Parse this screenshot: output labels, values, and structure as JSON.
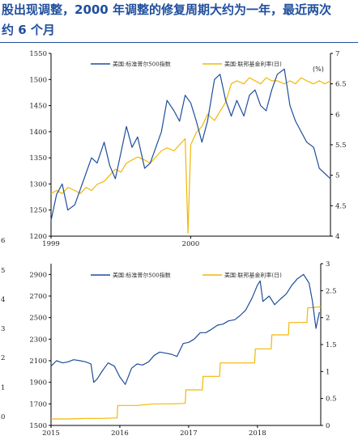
{
  "title": {
    "line1": "股出现调整，2000 年调整的修复周期大约为一年，最近两次",
    "line2": "约 6 个月"
  },
  "left_edge_labels": [
    "6",
    "5",
    "4",
    "3",
    "2",
    "1",
    "0"
  ],
  "colors": {
    "sp500": "#1f4e9c",
    "fed_rate": "#f2b705",
    "axis": "#000000",
    "title": "#1f4e9c"
  },
  "chart_data": [
    {
      "type": "line",
      "title": "",
      "xlabel": "",
      "ylabel": "",
      "x_ticks": [
        {
          "label": "1999",
          "value": 1999.0
        },
        {
          "label": "2000",
          "value": 2000.0
        }
      ],
      "xlim": [
        1999.0,
        2001.0
      ],
      "ylim": [
        1200,
        1550
      ],
      "y_ticks": [
        1200,
        1250,
        1300,
        1350,
        1400,
        1450,
        1500,
        1550
      ],
      "y2lim": [
        4,
        7
      ],
      "y2_ticks": [
        4,
        4.5,
        5,
        5.5,
        6,
        6.5,
        7
      ],
      "y2_unit": "(%)",
      "legend_position": "top",
      "series": [
        {
          "name": "美国:标准普尔500指数",
          "axis": "left",
          "x": [
            1999.0,
            1999.04,
            1999.08,
            1999.12,
            1999.17,
            1999.21,
            1999.25,
            1999.29,
            1999.33,
            1999.38,
            1999.42,
            1999.46,
            1999.5,
            1999.54,
            1999.58,
            1999.62,
            1999.67,
            1999.71,
            1999.75,
            1999.79,
            1999.83,
            1999.88,
            1999.92,
            1999.96,
            2000.0,
            2000.04,
            2000.08,
            2000.12,
            2000.17,
            2000.21,
            2000.25,
            2000.29,
            2000.33,
            2000.38,
            2000.42,
            2000.46,
            2000.5,
            2000.54,
            2000.58,
            2000.62,
            2000.67,
            2000.71,
            2000.75,
            2000.79,
            2000.83,
            2000.88,
            2000.92,
            2000.96,
            2001.0
          ],
          "values": [
            1230,
            1280,
            1300,
            1250,
            1260,
            1290,
            1320,
            1350,
            1340,
            1380,
            1335,
            1310,
            1360,
            1410,
            1370,
            1390,
            1330,
            1340,
            1370,
            1400,
            1460,
            1440,
            1420,
            1470,
            1455,
            1420,
            1380,
            1420,
            1500,
            1510,
            1460,
            1430,
            1460,
            1430,
            1470,
            1480,
            1450,
            1440,
            1480,
            1510,
            1520,
            1450,
            1420,
            1400,
            1380,
            1370,
            1330,
            1320,
            1310
          ]
        },
        {
          "name": "美国:联邦基金利率(日)",
          "axis": "right",
          "x": [
            1999.0,
            1999.04,
            1999.08,
            1999.12,
            1999.17,
            1999.21,
            1999.25,
            1999.29,
            1999.33,
            1999.38,
            1999.42,
            1999.46,
            1999.5,
            1999.54,
            1999.58,
            1999.62,
            1999.67,
            1999.71,
            1999.75,
            1999.79,
            1999.83,
            1999.88,
            1999.92,
            1999.96,
            1999.98,
            2000.0,
            2000.04,
            2000.08,
            2000.12,
            2000.17,
            2000.21,
            2000.25,
            2000.29,
            2000.33,
            2000.38,
            2000.42,
            2000.46,
            2000.5,
            2000.54,
            2000.58,
            2000.62,
            2000.67,
            2000.71,
            2000.75,
            2000.79,
            2000.83,
            2000.88,
            2000.92,
            2000.96,
            2001.0
          ],
          "values": [
            4.7,
            4.75,
            4.7,
            4.8,
            4.75,
            4.7,
            4.8,
            4.75,
            4.85,
            4.9,
            5.0,
            5.1,
            5.05,
            5.2,
            5.25,
            5.3,
            5.25,
            5.2,
            5.3,
            5.4,
            5.45,
            5.4,
            5.5,
            5.6,
            4.05,
            5.5,
            5.7,
            5.8,
            6.0,
            5.9,
            6.05,
            6.2,
            6.5,
            6.55,
            6.5,
            6.6,
            6.55,
            6.5,
            6.6,
            6.55,
            6.55,
            6.5,
            6.55,
            6.5,
            6.6,
            6.55,
            6.5,
            6.55,
            6.5,
            6.55
          ]
        }
      ]
    },
    {
      "type": "line",
      "title": "",
      "xlabel": "",
      "ylabel": "",
      "x_ticks": [
        {
          "label": "2015",
          "value": 2015.0
        },
        {
          "label": "2016",
          "value": 2016.0
        },
        {
          "label": "2017",
          "value": 2017.0
        },
        {
          "label": "2018",
          "value": 2018.0
        }
      ],
      "xlim": [
        2015.0,
        2018.92
      ],
      "ylim": [
        1500,
        3000
      ],
      "y_ticks": [
        1500,
        1700,
        1900,
        2100,
        2300,
        2500,
        2700,
        2900
      ],
      "y2lim": [
        0,
        3
      ],
      "y2_ticks": [
        0,
        0.5,
        1,
        1.5,
        2,
        2.5,
        3
      ],
      "legend_position": "top",
      "series": [
        {
          "name": "美国:标准普尔500指数",
          "axis": "left",
          "x": [
            2015.0,
            2015.08,
            2015.17,
            2015.25,
            2015.33,
            2015.42,
            2015.5,
            2015.58,
            2015.62,
            2015.67,
            2015.75,
            2015.83,
            2015.92,
            2016.0,
            2016.08,
            2016.17,
            2016.25,
            2016.33,
            2016.42,
            2016.5,
            2016.58,
            2016.67,
            2016.75,
            2016.83,
            2016.92,
            2017.0,
            2017.08,
            2017.17,
            2017.25,
            2017.33,
            2017.42,
            2017.5,
            2017.58,
            2017.67,
            2017.75,
            2017.83,
            2017.92,
            2018.0,
            2018.04,
            2018.08,
            2018.17,
            2018.25,
            2018.33,
            2018.42,
            2018.5,
            2018.58,
            2018.67,
            2018.75,
            2018.8,
            2018.85,
            2018.9
          ],
          "values": [
            2050,
            2100,
            2080,
            2090,
            2110,
            2100,
            2090,
            2070,
            1900,
            1930,
            2010,
            2080,
            2050,
            1950,
            1880,
            2030,
            2070,
            2060,
            2090,
            2150,
            2180,
            2170,
            2160,
            2140,
            2260,
            2270,
            2300,
            2360,
            2360,
            2390,
            2430,
            2440,
            2470,
            2480,
            2520,
            2570,
            2680,
            2800,
            2840,
            2650,
            2700,
            2620,
            2670,
            2720,
            2800,
            2860,
            2900,
            2820,
            2650,
            2400,
            2550
          ]
        },
        {
          "name": "美国:联邦基金利率(日)",
          "axis": "right",
          "x": [
            2015.0,
            2015.25,
            2015.5,
            2015.75,
            2015.96,
            2015.97,
            2016.25,
            2016.5,
            2016.75,
            2016.95,
            2016.96,
            2017.2,
            2017.21,
            2017.45,
            2017.46,
            2017.96,
            2017.97,
            2018.2,
            2018.21,
            2018.45,
            2018.46,
            2018.72,
            2018.73,
            2018.92
          ],
          "values": [
            0.12,
            0.12,
            0.13,
            0.13,
            0.14,
            0.37,
            0.37,
            0.4,
            0.4,
            0.41,
            0.66,
            0.66,
            0.91,
            0.91,
            1.16,
            1.16,
            1.42,
            1.42,
            1.68,
            1.68,
            1.91,
            1.91,
            2.18,
            2.2
          ]
        }
      ]
    }
  ]
}
